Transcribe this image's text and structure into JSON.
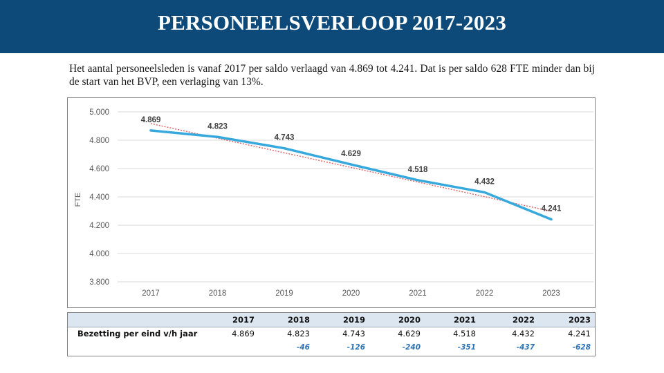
{
  "header": {
    "title": "PERSONEELSVERLOOP 2017-2023"
  },
  "intro": {
    "text": "Het aantal personeelsleden is vanaf 2017 per saldo verlaagd van 4.869 tot 4.241. Dat is per saldo 628 FTE minder dan bij de start van het BVP, een verlaging van 13%."
  },
  "colors": {
    "header_bg": "#0d4a7a",
    "line": "#36a8dc",
    "trend": "#e06666",
    "grid": "#d9d9d9",
    "table_header_bg": "#dce6f1",
    "diff_text": "#2e74b5"
  },
  "chart_data": {
    "type": "line",
    "title": "",
    "xlabel": "",
    "ylabel": "FTE",
    "categories": [
      "2017",
      "2018",
      "2019",
      "2020",
      "2021",
      "2022",
      "2023"
    ],
    "series": [
      {
        "values": [
          4869,
          4823,
          4743,
          4629,
          4518,
          4432,
          4241
        ]
      }
    ],
    "data_labels": [
      "4.869",
      "4.823",
      "4.743",
      "4.629",
      "4.518",
      "4.432",
      "4.241"
    ],
    "trendline": "linear, dotted",
    "ylim": [
      3800,
      5000
    ],
    "yticks": [
      3800,
      4000,
      4200,
      4400,
      4600,
      4800,
      5000
    ],
    "ytick_labels": [
      "3.800",
      "4.000",
      "4.200",
      "4.400",
      "4.600",
      "4.800",
      "5.000"
    ],
    "grid": true,
    "legend": "none"
  },
  "table": {
    "years": [
      "2017",
      "2018",
      "2019",
      "2020",
      "2021",
      "2022",
      "2023"
    ],
    "row_label": "Bezetting per eind v/h jaar",
    "values": [
      "4.869",
      "4.823",
      "4.743",
      "4.629",
      "4.518",
      "4.432",
      "4.241"
    ],
    "diffs": [
      "",
      "-46",
      "-126",
      "-240",
      "-351",
      "-437",
      "-628"
    ]
  }
}
